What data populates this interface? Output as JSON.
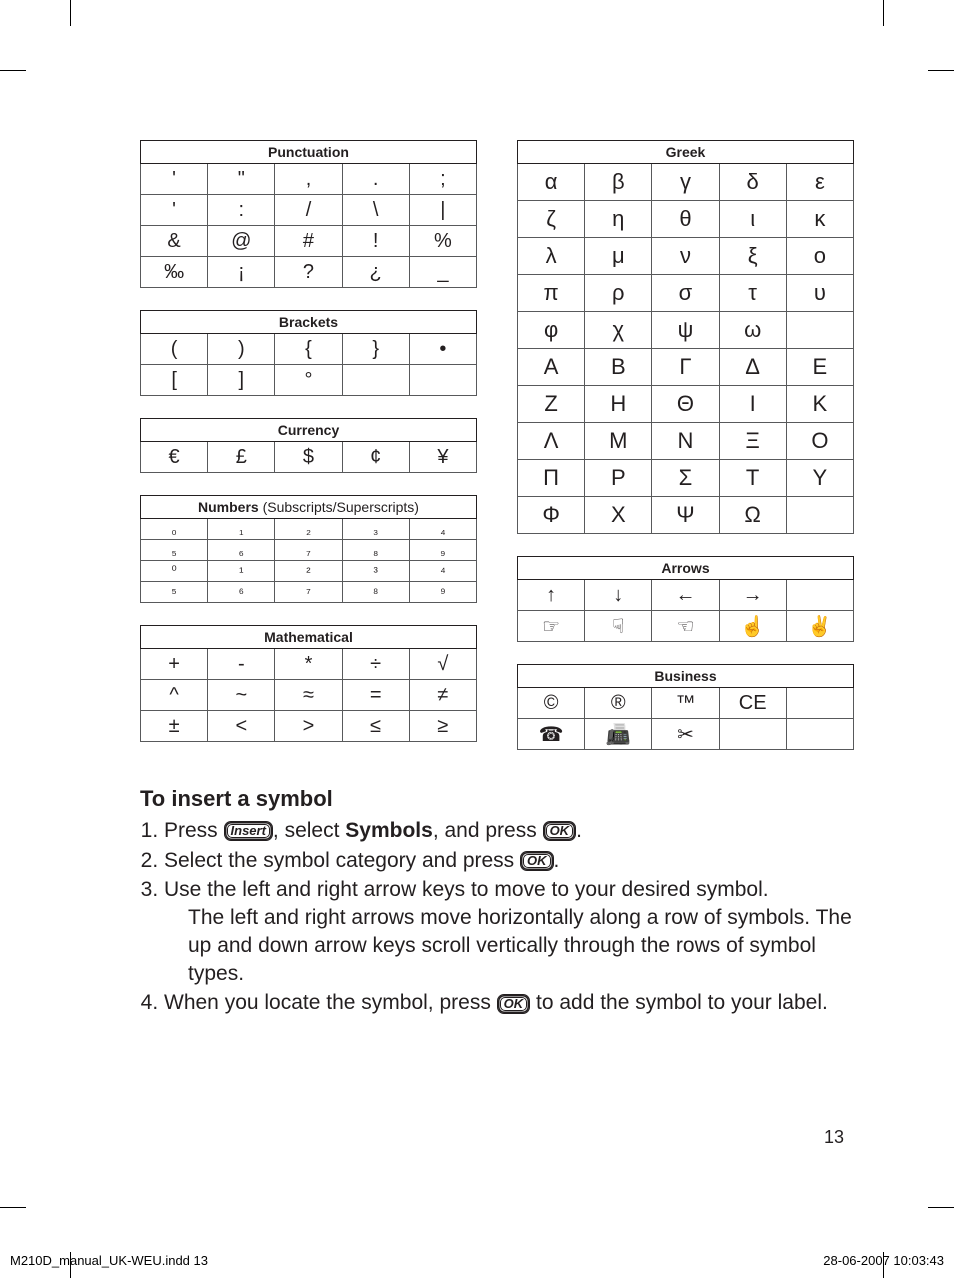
{
  "tables": {
    "punctuation": {
      "title": "Punctuation",
      "rows": [
        [
          "'",
          "\"",
          ",",
          ".",
          ";"
        ],
        [
          "'",
          ":",
          "/",
          "\\",
          "|"
        ],
        [
          "&",
          "@",
          "#",
          "!",
          "%"
        ],
        [
          "‰",
          "¡",
          "?",
          "¿",
          "_"
        ]
      ]
    },
    "brackets": {
      "title": "Brackets",
      "rows": [
        [
          "(",
          ")",
          "{",
          "}",
          "•"
        ],
        [
          "[",
          "]",
          "°",
          "",
          ""
        ]
      ]
    },
    "currency": {
      "title": "Currency",
      "rows": [
        [
          "€",
          "£",
          "$",
          "¢",
          "¥"
        ]
      ]
    },
    "numbers": {
      "title": "Numbers",
      "subtitle": "(Subscripts/Superscripts)",
      "rows": [
        [
          "₀",
          "₁",
          "₂",
          "₃",
          "₄"
        ],
        [
          "₅",
          "₆",
          "₇",
          "₈",
          "₉"
        ],
        [
          "⁰",
          "¹",
          "²",
          "³",
          "⁴"
        ],
        [
          "⁵",
          "⁶",
          "⁷",
          "⁸",
          "⁹"
        ]
      ]
    },
    "mathematical": {
      "title": "Mathematical",
      "rows": [
        [
          "+",
          "-",
          "*",
          "÷",
          "√"
        ],
        [
          "^",
          "~",
          "≈",
          "=",
          "≠"
        ],
        [
          "±",
          "<",
          ">",
          "≤",
          "≥"
        ]
      ]
    },
    "greek": {
      "title": "Greek",
      "rows": [
        [
          "α",
          "β",
          "γ",
          "δ",
          "ε"
        ],
        [
          "ζ",
          "η",
          "θ",
          "ι",
          "κ"
        ],
        [
          "λ",
          "μ",
          "ν",
          "ξ",
          "ο"
        ],
        [
          "π",
          "ρ",
          "σ",
          "τ",
          "υ"
        ],
        [
          "φ",
          "χ",
          "ψ",
          "ω",
          ""
        ],
        [
          "Α",
          "Β",
          "Γ",
          "Δ",
          "Ε"
        ],
        [
          "Ζ",
          "Η",
          "Θ",
          "Ι",
          "Κ"
        ],
        [
          "Λ",
          "Μ",
          "Ν",
          "Ξ",
          "Ο"
        ],
        [
          "Π",
          "Ρ",
          "Σ",
          "Τ",
          "Υ"
        ],
        [
          "Φ",
          "Χ",
          "Ψ",
          "Ω",
          ""
        ]
      ]
    },
    "arrows": {
      "title": "Arrows",
      "rows": [
        [
          "↑",
          "↓",
          "←",
          "→",
          ""
        ],
        [
          "☞",
          "☟",
          "☜",
          "☝",
          "✌"
        ]
      ]
    },
    "business": {
      "title": "Business",
      "rows": [
        [
          "©",
          "®",
          "™",
          "CE",
          ""
        ],
        [
          "☎",
          "📠",
          "✂",
          "",
          ""
        ]
      ]
    }
  },
  "instructions": {
    "heading": "To insert a symbol",
    "step1a": "Press ",
    "step1_key1": "Insert",
    "step1b": ", select ",
    "step1_bold": "Symbols",
    "step1c": ", and press ",
    "step1_key2": "OK",
    "step1d": ".",
    "step2a": "Select the symbol category and press ",
    "step2_key": "OK",
    "step2b": ".",
    "step3a": "Use the left and right arrow keys to move to your desired symbol.",
    "step3b": "The left and right arrows move horizontally along a row of symbols. The up and down arrow keys scroll vertically through the rows of symbol types.",
    "step4a": "When you locate the symbol, press ",
    "step4_key": "OK",
    "step4b": " to add the symbol to your label."
  },
  "page_number": "13",
  "footer_left": "M210D_manual_UK-WEU.indd   13",
  "footer_right": "28-06-2007   10:03:43"
}
